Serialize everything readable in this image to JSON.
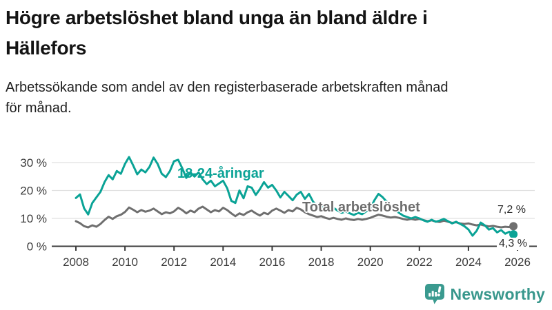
{
  "title": {
    "line1": "Högre arbetslöshet bland unga än bland äldre i",
    "line2": "Hällefors"
  },
  "subtitle": {
    "line1": "Arbetssökande som andel av den registerbaserade arbetskraften månad",
    "line2": "för månad."
  },
  "footer": {
    "brand": "Newsworthy",
    "logo_icon": "bar-chart-speech-bubble-icon",
    "brand_color": "#38978c"
  },
  "colors": {
    "youth_series": "#0aa396",
    "total_series": "#6f6f6f",
    "gridline": "#e0e0e0",
    "axis": "#3a3a3a",
    "tick_text": "#3c3c3c"
  },
  "chart_data": {
    "type": "line",
    "title": "Högre arbetslöshet bland unga än bland äldre i Hällefors",
    "subtitle": "Arbetssökande som andel av den registerbaserade arbetskraften månad för månad.",
    "xlabel": "",
    "ylabel": "",
    "unit": "%",
    "grid": "horizontal",
    "legend_position": "inline-labels",
    "x_axis": {
      "ticks": [
        2008,
        2010,
        2012,
        2014,
        2016,
        2018,
        2020,
        2022,
        2024,
        2026
      ],
      "range": [
        2007.0,
        2026.8
      ]
    },
    "y_axis": {
      "ticks": [
        {
          "value": 0,
          "label": "0 %"
        },
        {
          "value": 10,
          "label": "10 %"
        },
        {
          "value": 20,
          "label": "20 %"
        },
        {
          "value": 30,
          "label": "30 %"
        }
      ],
      "range": [
        0,
        34
      ]
    },
    "series": [
      {
        "name": "18-24-åringar",
        "color": "#0aa396",
        "start": 2008,
        "step_years": 0.166667,
        "end_label": "4,3 %",
        "end_value": 4.3,
        "values": [
          17.3,
          18.6,
          13.6,
          11.4,
          15.5,
          17.5,
          19.5,
          23,
          25.5,
          24,
          27,
          26,
          29.5,
          32,
          29,
          25.8,
          27.5,
          26.5,
          28.5,
          31.8,
          29.5,
          26,
          24.8,
          27,
          30.5,
          31,
          28,
          24.5,
          26.5,
          25,
          26.5,
          24,
          22.3,
          23.5,
          21.5,
          22.5,
          23.5,
          20.8,
          16.3,
          15.5,
          20,
          17.2,
          21.5,
          21,
          18.4,
          20.5,
          23,
          21,
          22,
          20,
          17.5,
          19.5,
          18,
          16.5,
          18.5,
          19.5,
          17,
          18.8,
          16,
          14.5,
          14.8,
          13.5,
          12.5,
          13.8,
          12.8,
          12,
          12.5,
          11.8,
          11.2,
          12,
          11.5,
          12.5,
          13.5,
          16.5,
          18.8,
          17.6,
          16,
          14,
          13,
          12,
          11,
          10.5,
          10,
          10.5,
          10,
          9.3,
          8.8,
          9.5,
          8.8,
          9.2,
          9.8,
          9,
          8.2,
          8.8,
          8,
          7.2,
          6,
          3.8,
          5.5,
          8.5,
          7.5,
          6,
          6.5,
          5,
          5.8,
          4.5,
          5.2,
          4.3
        ]
      },
      {
        "name": "Total arbetslöshet",
        "color": "#6f6f6f",
        "start": 2008,
        "step_years": 0.166667,
        "end_label": "7,2 %",
        "end_value": 7.2,
        "values": [
          9,
          8.3,
          7.2,
          6.8,
          7.5,
          7,
          8,
          9.4,
          10.6,
          9.8,
          10.8,
          11.3,
          12.3,
          13.9,
          13.1,
          12.2,
          13,
          12.4,
          12.8,
          13.5,
          12.5,
          11.5,
          12.2,
          11.8,
          12.5,
          13.8,
          13,
          11.8,
          12.8,
          12.2,
          13.5,
          14.2,
          13.2,
          12.2,
          13,
          12.5,
          13.8,
          13,
          11.8,
          10.8,
          11.8,
          11.2,
          12.2,
          12.8,
          11.8,
          11,
          12,
          11.5,
          12.8,
          13.5,
          12.8,
          12,
          13,
          12.5,
          13.8,
          13.2,
          12.2,
          11.5,
          11,
          10.5,
          10.8,
          10.2,
          9.8,
          10.2,
          9.8,
          9.5,
          10,
          9.6,
          9.4,
          9.8,
          9.5,
          9.8,
          10.2,
          10.8,
          11.3,
          11,
          10.6,
          10.3,
          10.5,
          10.2,
          9.8,
          9.5,
          9.8,
          9.5,
          9.8,
          9.4,
          9,
          9.3,
          8.9,
          8.7,
          9.2,
          8.8,
          8.4,
          8.6,
          8.2,
          8,
          8.2,
          7.8,
          7.5,
          7.8,
          7.4,
          7.1,
          7.3,
          7,
          6.8,
          7,
          6.9,
          7.2
        ]
      }
    ]
  }
}
